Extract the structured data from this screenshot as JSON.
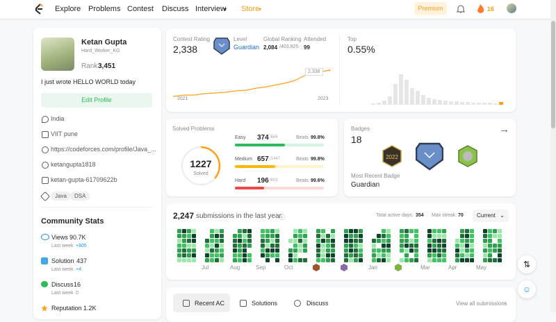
{
  "nav": {
    "links": [
      "Explore",
      "Problems",
      "Contest",
      "Discuss",
      "Interview",
      "Store"
    ],
    "premium": "Premium",
    "streak": "16"
  },
  "profile": {
    "name": "Ketan Gupta",
    "username": "Hard_Worker_KG",
    "rank_label": "Rank",
    "rank": "3,451",
    "bio": "I just wrote HELLO WORLD today",
    "edit": "Edit Profile",
    "info": [
      "India",
      "VIIT pune",
      "https://codeforces.com/profile/Java_...",
      "ketangupta1818",
      "ketan-gupta-61709622b"
    ],
    "skills": [
      "Java",
      "DSA"
    ]
  },
  "community": {
    "title": "Community Stats",
    "items": [
      {
        "label": "Views",
        "value": "90.7K",
        "sub": "Last week",
        "delta": "+805"
      },
      {
        "label": "Solution",
        "value": "437",
        "sub": "Last week",
        "delta": "+4"
      },
      {
        "label": "Discuss",
        "value": "16",
        "sub": "Last week",
        "delta": "0"
      },
      {
        "label": "Reputation",
        "value": "1.2K"
      }
    ]
  },
  "contest": {
    "rating_label": "Contest Rating",
    "rating": "2,338",
    "level_label": "Level",
    "level": "Guardian",
    "global_label": "Global Ranking",
    "global": "2,084",
    "global_total": "/403,825",
    "attended_label": "Attended",
    "attended": "99",
    "tooltip": "2,338",
    "x_start": "2021",
    "x_end": "2023",
    "top_label": "Top",
    "top": "0.55%"
  },
  "solved": {
    "title": "Solved Problems",
    "total": "1227",
    "total_label": "Solved",
    "rows": [
      {
        "level": "Easy",
        "solved": "374",
        "total": "/666",
        "beats_label": "Beats",
        "beats": "99.8%"
      },
      {
        "level": "Medium",
        "solved": "657",
        "total": "/1447",
        "beats_label": "Beats",
        "beats": "99.8%"
      },
      {
        "level": "Hard",
        "solved": "196",
        "total": "/603",
        "beats_label": "Beats",
        "beats": "99.6%"
      }
    ]
  },
  "badges": {
    "title": "Badges",
    "count": "18",
    "recent_label": "Most Recent Badge",
    "recent": "Guardian"
  },
  "submissions": {
    "count": "2,247",
    "text": "submissions in the last year",
    "active_label": "Total active days:",
    "active": "354",
    "streak_label": "Max streak:",
    "streak": "70",
    "select": "Current",
    "months": [
      "Jul",
      "Aug",
      "Sep",
      "Oct",
      "Jan",
      "Mar",
      "Apr",
      "May"
    ]
  },
  "tabs": {
    "items": [
      "Recent AC",
      "Solutions",
      "Discuss"
    ],
    "view_all": "View all submissions"
  }
}
